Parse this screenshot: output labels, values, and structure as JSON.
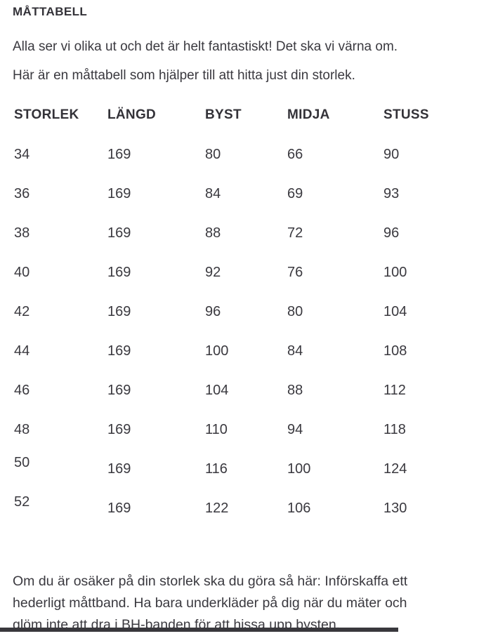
{
  "page": {
    "title": "MÅTTABELL",
    "intro": [
      "Alla ser vi olika ut och det är helt fantastiskt! Det ska vi värna om.",
      "Här är en måttabell som hjälper till att hitta just din storlek."
    ],
    "table": {
      "columns": [
        "STORLEK",
        "LÄNGD",
        "BYST",
        "MIDJA",
        "STUSS"
      ],
      "rows": [
        [
          "34",
          "169",
          "80",
          "66",
          "90"
        ],
        [
          "36",
          "169",
          "84",
          "69",
          "93"
        ],
        [
          "38",
          "169",
          "88",
          "72",
          "96"
        ],
        [
          "40",
          "169",
          "92",
          "76",
          "100"
        ],
        [
          "42",
          "169",
          "96",
          "80",
          "104"
        ],
        [
          "44",
          "169",
          "100",
          "84",
          "108"
        ],
        [
          "46",
          "169",
          "104",
          "88",
          "112"
        ],
        [
          "48",
          "169",
          "110",
          "94",
          "118"
        ],
        [
          "50",
          "169",
          "116",
          "100",
          "124"
        ],
        [
          "52",
          "169",
          "122",
          "106",
          "130"
        ]
      ]
    },
    "footer_lines": [
      "Om du är osäker på din storlek ska du göra så här: Införskaffa ett",
      "hederligt måttband. Ha bara underkläder på dig när du mäter och",
      "glöm inte att dra i BH-banden för att hissa upp bysten."
    ],
    "colors": {
      "text": "#3a393f",
      "heading": "#333238",
      "background": "#ffffff",
      "bottom_bar": "#39383d"
    }
  }
}
